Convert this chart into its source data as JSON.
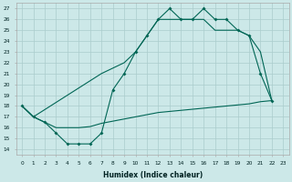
{
  "bg_color": "#cce8e8",
  "grid_color": "#aacccc",
  "line_color": "#006655",
  "xlabel": "Humidex (Indice chaleur)",
  "ylim": [
    13.5,
    27.5
  ],
  "xlim": [
    -0.5,
    23.5
  ],
  "yticks": [
    14,
    15,
    16,
    17,
    18,
    19,
    20,
    21,
    22,
    23,
    24,
    25,
    26,
    27
  ],
  "xticks": [
    0,
    1,
    2,
    3,
    4,
    5,
    6,
    7,
    8,
    9,
    10,
    11,
    12,
    13,
    14,
    15,
    16,
    17,
    18,
    19,
    20,
    21,
    22,
    23
  ],
  "line1_x": [
    0,
    1,
    2,
    3,
    4,
    5,
    6,
    7,
    8,
    9,
    10,
    11,
    12,
    13,
    14,
    15,
    16,
    17,
    18,
    19,
    20,
    21,
    22
  ],
  "line1_y": [
    18,
    17,
    16.5,
    15.5,
    14.5,
    14.5,
    14.5,
    15.5,
    19.5,
    21,
    23,
    24.5,
    26,
    27,
    26,
    26,
    27,
    26,
    26,
    25,
    24.5,
    21,
    18.5
  ],
  "line2_x": [
    0,
    1,
    7,
    8,
    9,
    10,
    11,
    12,
    13,
    14,
    15,
    16,
    17,
    18,
    19,
    20,
    21,
    22
  ],
  "line2_y": [
    18,
    17,
    21,
    21.5,
    22,
    23,
    24.5,
    26,
    26,
    26,
    26,
    26,
    25,
    25,
    25,
    24.5,
    23,
    18.5
  ],
  "line3_x": [
    0,
    1,
    2,
    3,
    4,
    5,
    6,
    7,
    8,
    9,
    10,
    11,
    12,
    13,
    14,
    15,
    16,
    17,
    18,
    19,
    20,
    21,
    22
  ],
  "line3_y": [
    18,
    17,
    16.5,
    16.0,
    16.0,
    16.0,
    16.1,
    16.4,
    16.6,
    16.8,
    17.0,
    17.2,
    17.4,
    17.5,
    17.6,
    17.7,
    17.8,
    17.9,
    18.0,
    18.1,
    18.2,
    18.4,
    18.5
  ]
}
